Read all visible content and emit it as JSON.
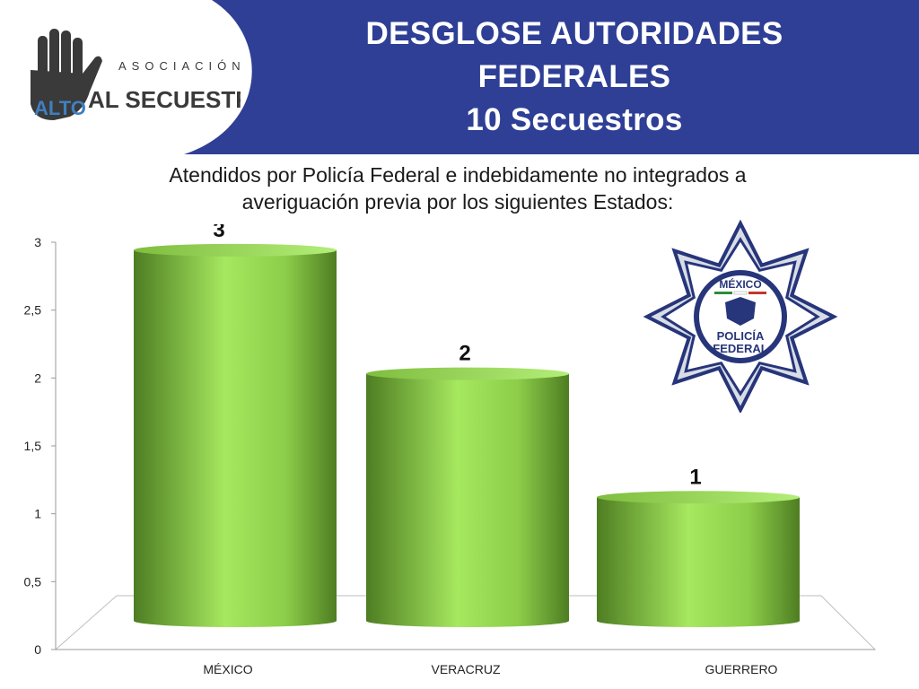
{
  "header": {
    "title_lines": [
      "DESGLOSE AUTORIDADES",
      "FEDERALES",
      "10 Secuestros"
    ],
    "band_color": "#2e3f95"
  },
  "logo": {
    "text_small": "ASOCIACIÓN",
    "text_alto": "ALTO",
    "text_al_secuestro": "AL SECUESTRO",
    "hand_color": "#3a3a3a",
    "accent_color": "#3f7fc1"
  },
  "subtitle": {
    "lines": [
      "Atendidos por Policía Federal e indebidamente no integrados a",
      "averiguación previa por los siguientes Estados:"
    ]
  },
  "badge": {
    "text_top": "MÉXICO",
    "text_bottom_1": "POLICÍA",
    "text_bottom_2": "FEDERAL",
    "color": "#27357a"
  },
  "chart_data": {
    "type": "bar",
    "title": "",
    "xlabel": "",
    "ylabel": "",
    "categories": [
      "MÉXICO",
      "VERACRUZ",
      "GUERRERO"
    ],
    "values": [
      3,
      2,
      1
    ],
    "data_labels": [
      "3",
      "2",
      "1"
    ],
    "ylim": [
      0,
      3
    ],
    "yticks": [
      0,
      0.5,
      1,
      1.5,
      2,
      2.5,
      3
    ],
    "ytick_labels": [
      "0",
      "0,5",
      "1",
      "1,5",
      "2",
      "2,5",
      "3"
    ],
    "style": "3d-cylinder",
    "bar_color": "#8fd14f",
    "grid": false
  }
}
